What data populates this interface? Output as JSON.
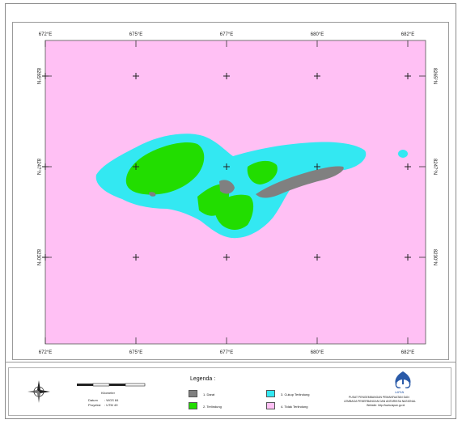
{
  "map": {
    "top_ticks": [
      "672°E",
      "675°E",
      "677°E",
      "680°E",
      "682°E"
    ],
    "bottom_ticks": [
      "672°E",
      "675°E",
      "677°E",
      "680°E",
      "682°E"
    ],
    "left_ticks": [
      "8265°N",
      "8247°N",
      "8230°N"
    ],
    "right_ticks": [
      "8265°N",
      "8247°N",
      "8230°N"
    ],
    "colors": {
      "background": "#ffc0f4",
      "cyan": "#33e8f2",
      "green": "#22dd00",
      "gray": "#808080"
    }
  },
  "legend": {
    "title": "Legenda :",
    "items": [
      {
        "label": "1. Darat",
        "color": "#808080"
      },
      {
        "label": "2. Terlindung",
        "color": "#22dd00"
      },
      {
        "label": "3. Cukup Terlindung",
        "color": "#33e8f2"
      },
      {
        "label": "4. Tidak Terlindung",
        "color": "#ffc0f4"
      }
    ]
  },
  "scale": {
    "label": "Kilometer",
    "datum_label": "Datum",
    "datum_value": ": WGS 84",
    "proyeksi_label": "Proyeksi",
    "proyeksi_value": ": UTM 49"
  },
  "institution": {
    "logo_text": "LAPAN",
    "line1": "PUSAT PENGEMBANGAN PEMANFAATAN DAN",
    "line2": "LEMBAGA PENERBANGAN DAN ANTARIKSA NASIONAL",
    "website": "Website: http://www.lapan.go.id"
  }
}
